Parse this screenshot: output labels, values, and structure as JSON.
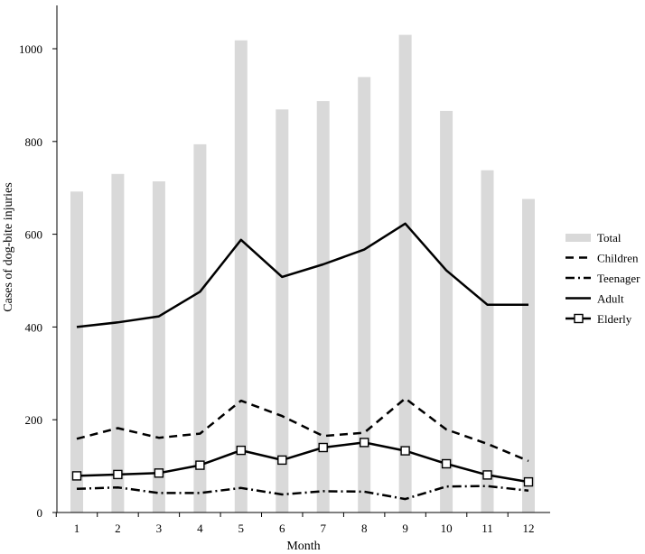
{
  "chart_data": {
    "type": "bar+line",
    "xlabel": "Month",
    "ylabel": "Cases of dog-bite injuries",
    "ylim": [
      0,
      1100
    ],
    "yticks": [
      0,
      200,
      400,
      600,
      800,
      1000
    ],
    "categories": [
      "1",
      "2",
      "3",
      "4",
      "5",
      "6",
      "7",
      "8",
      "9",
      "10",
      "11",
      "12"
    ],
    "grid": false,
    "legend_position": "right",
    "series": [
      {
        "name": "Total",
        "kind": "bar",
        "color": "#d9d9d9",
        "values": [
          692,
          730,
          714,
          794,
          1018,
          869,
          887,
          939,
          1030,
          866,
          738,
          676
        ]
      },
      {
        "name": "Children",
        "kind": "line",
        "style": "dashed",
        "color": "#000000",
        "values": [
          159,
          182,
          161,
          170,
          241,
          208,
          165,
          172,
          246,
          179,
          148,
          111
        ]
      },
      {
        "name": "Teenager",
        "kind": "line",
        "style": "dashdot",
        "color": "#000000",
        "values": [
          51,
          54,
          42,
          42,
          53,
          39,
          46,
          45,
          29,
          56,
          57,
          47
        ]
      },
      {
        "name": "Adult",
        "kind": "line",
        "style": "solid",
        "color": "#000000",
        "values": [
          400,
          410,
          423,
          476,
          588,
          508,
          535,
          567,
          623,
          522,
          448,
          448
        ]
      },
      {
        "name": "Elderly",
        "kind": "line",
        "style": "solid-square-marker",
        "color": "#000000",
        "values": [
          79,
          82,
          85,
          102,
          134,
          113,
          140,
          151,
          133,
          105,
          81,
          66
        ]
      }
    ]
  }
}
